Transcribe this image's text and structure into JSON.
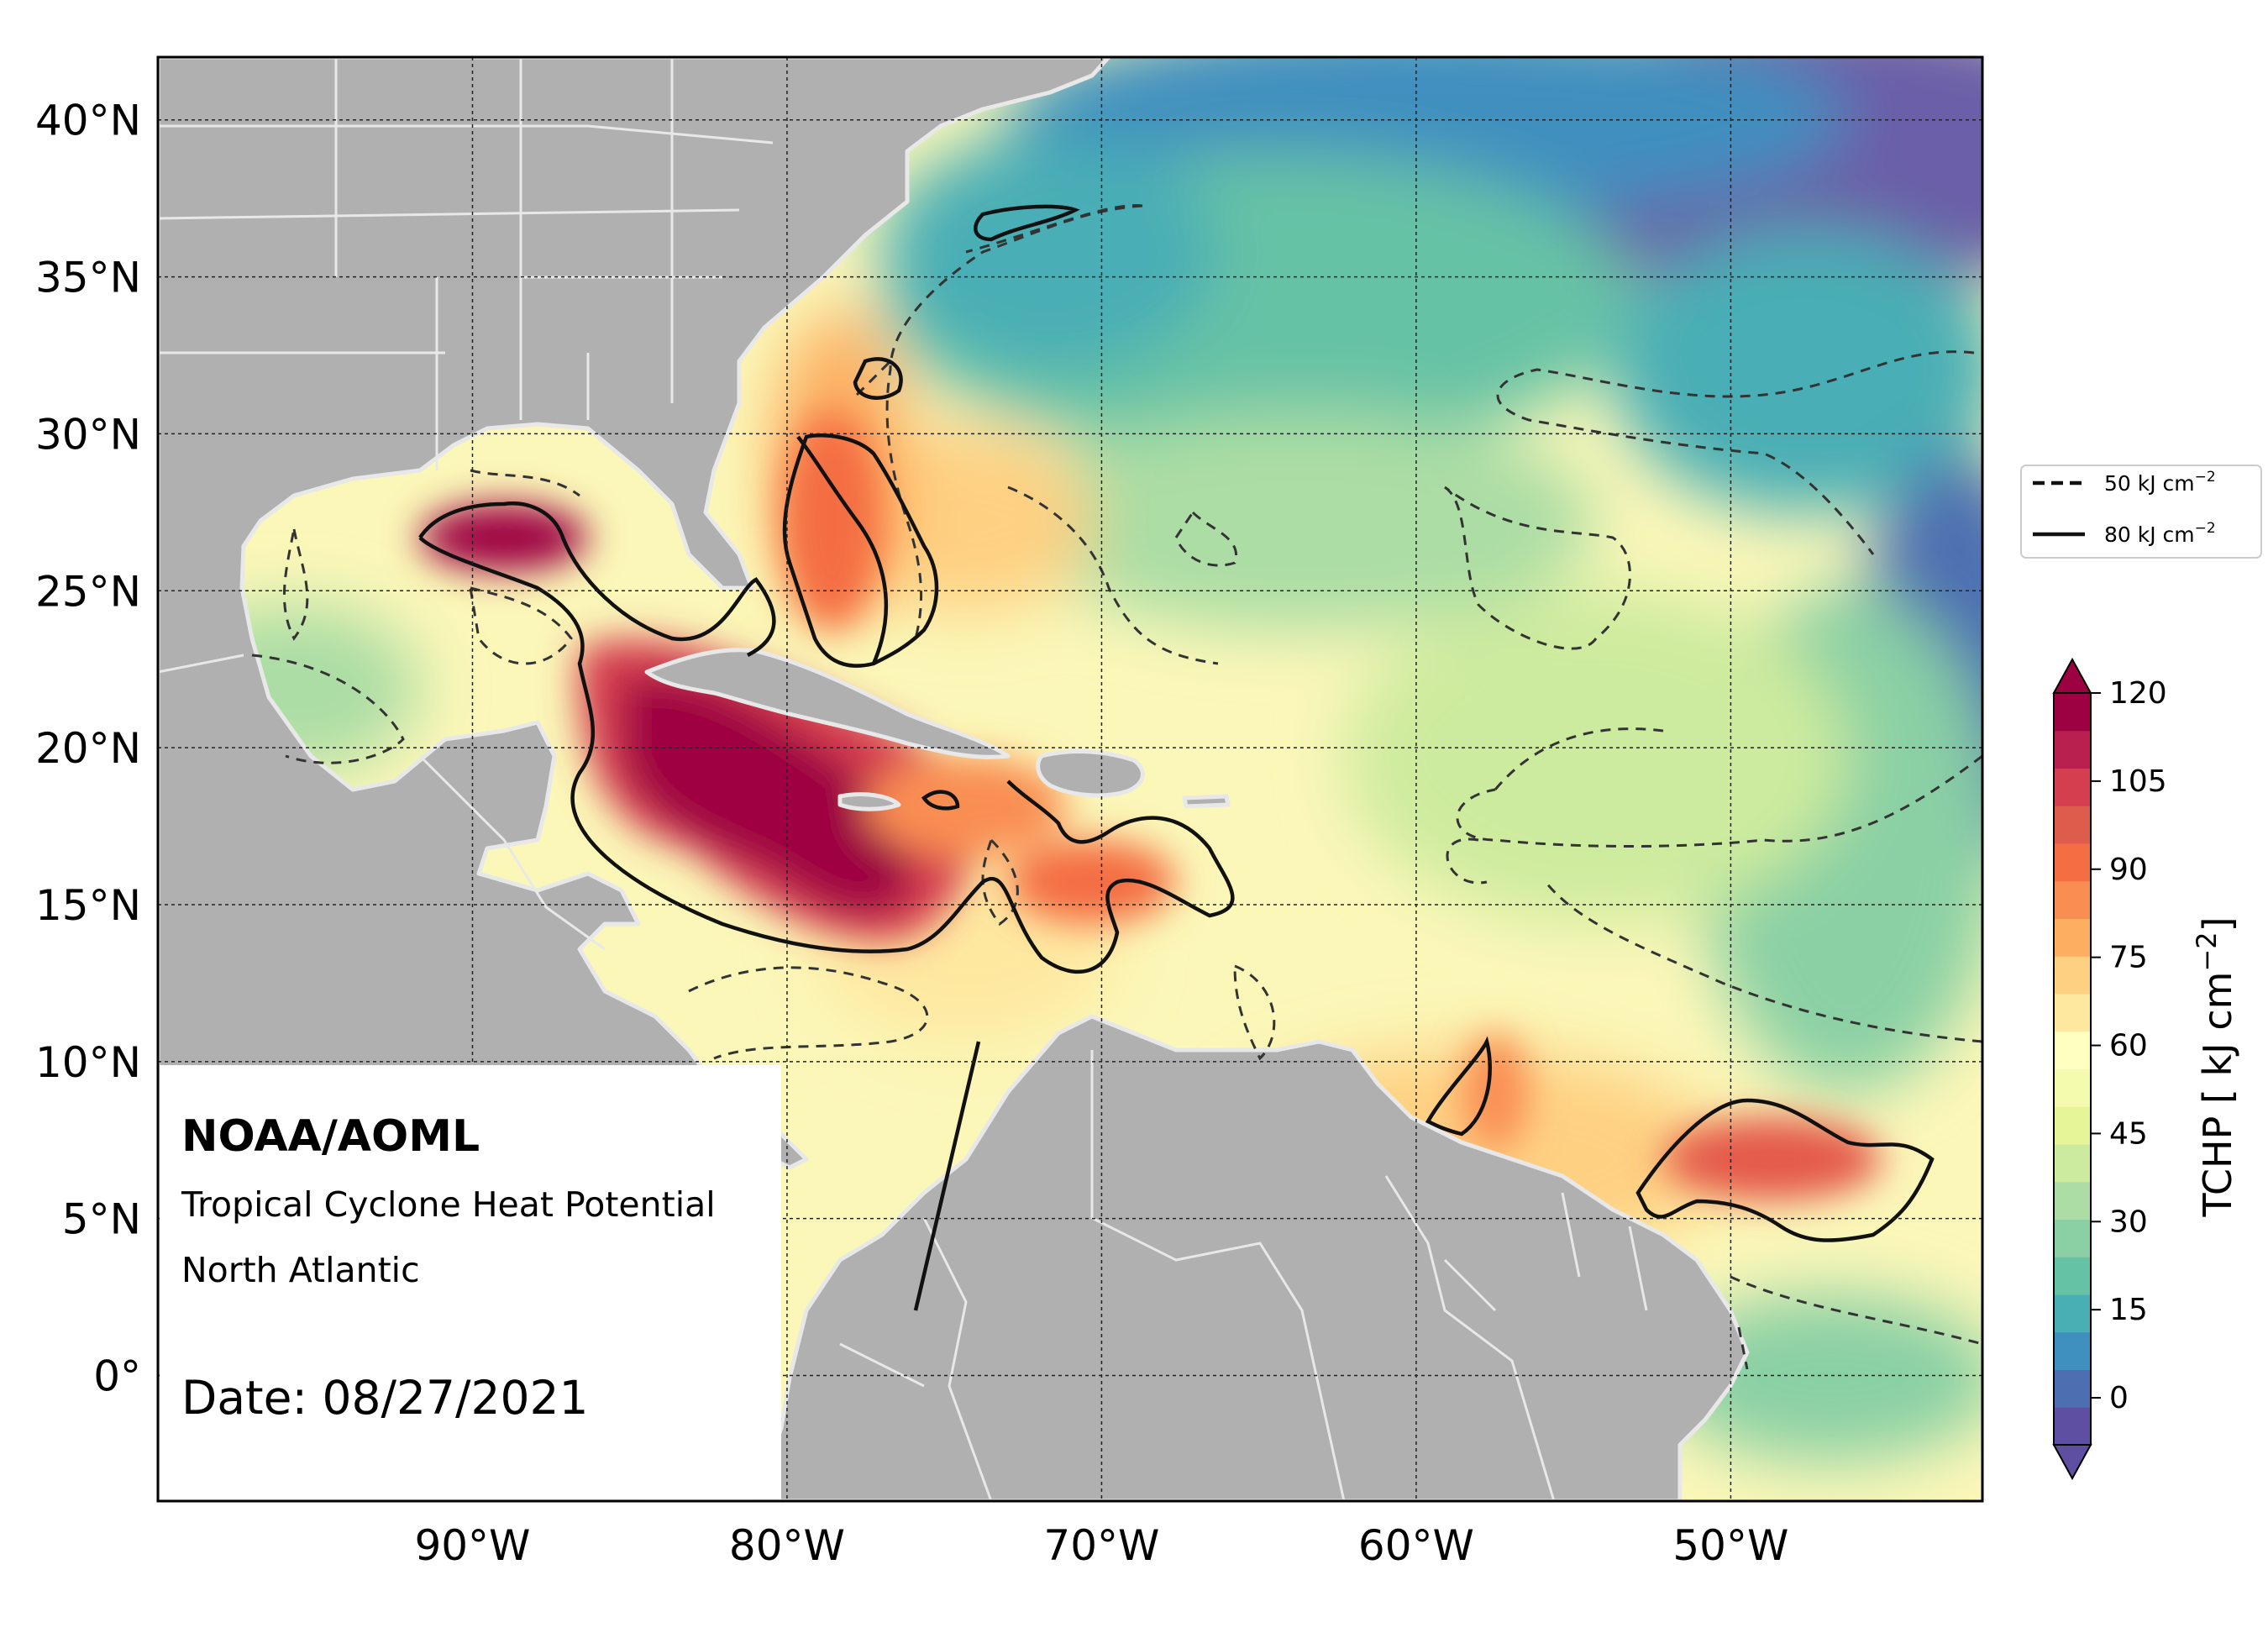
{
  "info": {
    "org": "NOAA/AOML",
    "product": "Tropical Cyclone Heat Potential",
    "region": "North Atlantic",
    "date_text": "Date: 08/27/2021"
  },
  "axes": {
    "lat_labels": [
      "40°N",
      "35°N",
      "30°N",
      "25°N",
      "20°N",
      "15°N",
      "10°N",
      "5°N",
      "0°"
    ],
    "lon_labels": [
      "90°W",
      "80°W",
      "70°W",
      "60°W",
      "50°W"
    ]
  },
  "legend": {
    "dashed_label": "50 kJ cm",
    "solid_label": "80 kJ cm",
    "unit_exponent": "−2"
  },
  "colorbar": {
    "title": "TCHP [ kJ cm",
    "title_exponent": "−2",
    "title_close": "]",
    "tick_labels": [
      "120",
      "105",
      "90",
      "75",
      "60",
      "45",
      "30",
      "15",
      "0"
    ],
    "min": -8,
    "max": 120,
    "step": 8,
    "colors": [
      "#5e4fa2",
      "#4d6fb1",
      "#3f8fbf",
      "#4aaeb5",
      "#66c2a5",
      "#8ad0a4",
      "#abdda4",
      "#cdeb9e",
      "#e6f598",
      "#f4faae",
      "#ffffbf",
      "#fee8a0",
      "#fed082",
      "#fdae61",
      "#f98e52",
      "#f46d43",
      "#de5c4c",
      "#d53e4f",
      "#b9204f",
      "#9e0142"
    ]
  },
  "colors": {
    "land": "#b0b0b0",
    "coast": "#e8e8e8",
    "deep_ocean": "#6a5fa8"
  },
  "map": {
    "lon_range": [
      -100,
      -42
    ],
    "lat_range": [
      -4,
      42
    ]
  }
}
